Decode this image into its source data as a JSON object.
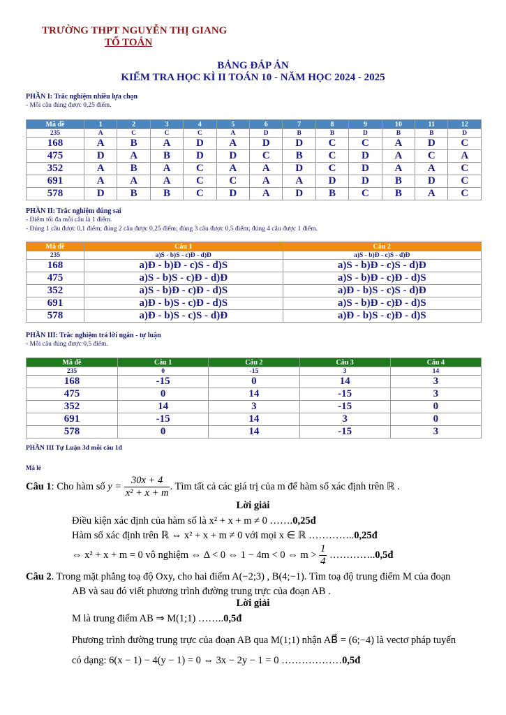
{
  "header": {
    "school": "TRƯỜNG THPT NGUYỄN THỊ GIANG",
    "department": "TỔ TOÁN",
    "title": "BẢNG ĐÁP ÁN",
    "subtitle": "KIỂM TRA HỌC KÌ II TOÁN 10 - NĂM HỌC 2024 - 2025"
  },
  "colors": {
    "header_red": "#8b1a1a",
    "title_blue": "#1a1a8c",
    "part1_header": "#4a86c0",
    "part2_header": "#f28c0a",
    "part3_header": "#1e7b1e"
  },
  "part1": {
    "title": "PHẦN I: Trắc nghiệm nhiều lựa chọn",
    "note": "- Mỗi câu đúng được 0,25 điểm.",
    "columns": [
      "Mã đề",
      "1",
      "2",
      "3",
      "4",
      "5",
      "6",
      "7",
      "8",
      "9",
      "10",
      "11",
      "12"
    ],
    "rows": [
      [
        "235",
        "A",
        "C",
        "C",
        "C",
        "A",
        "D",
        "B",
        "B",
        "D",
        "B",
        "B",
        "D"
      ],
      [
        "168",
        "A",
        "B",
        "A",
        "D",
        "A",
        "D",
        "D",
        "C",
        "C",
        "A",
        "D",
        "C"
      ],
      [
        "475",
        "D",
        "A",
        "B",
        "D",
        "D",
        "C",
        "B",
        "C",
        "D",
        "A",
        "C",
        "A"
      ],
      [
        "352",
        "A",
        "B",
        "A",
        "C",
        "A",
        "A",
        "D",
        "C",
        "D",
        "A",
        "A",
        "C"
      ],
      [
        "691",
        "A",
        "A",
        "A",
        "C",
        "C",
        "A",
        "A",
        "D",
        "D",
        "B",
        "D",
        "C"
      ],
      [
        "578",
        "D",
        "B",
        "B",
        "C",
        "D",
        "A",
        "D",
        "B",
        "C",
        "B",
        "A",
        "C"
      ]
    ]
  },
  "part2": {
    "title": "PHẦN II: Trắc nghiệm đúng sai",
    "notes": [
      "- Điểm tối đa mỗi câu là 1 điểm.",
      "- Đúng 1 câu được 0,1 điểm; đúng 2 câu được 0,25 điểm; đúng 3 câu được 0,5 điểm; đúng 4 câu được 1 điểm."
    ],
    "columns": [
      "Mã đề",
      "Câu 1",
      "Câu 2"
    ],
    "rows": [
      [
        "235",
        "a)S - b)S - c)Đ - d)Đ",
        "a)S - b)Đ - c)S - d)Đ"
      ],
      [
        "168",
        "a)Đ - b)Đ - c)S - d)S",
        "a)S - b)Đ - c)S - d)Đ"
      ],
      [
        "475",
        "a)S - b)S - c)Đ - d)Đ",
        "a)S - b)Đ - c)Đ - d)S"
      ],
      [
        "352",
        "a)S - b)Đ - c)Đ - d)S",
        "a)Đ - b)S - c)S - d)Đ"
      ],
      [
        "691",
        "a)Đ - b)S - c)Đ - d)S",
        "a)S - b)Đ - c)Đ - d)S"
      ],
      [
        "578",
        "a)Đ - b)S - c)S - d)Đ",
        "a)Đ - b)S - c)Đ - d)S"
      ]
    ]
  },
  "part3": {
    "title": "PHẦN III: Trắc nghiệm trả lời ngắn - tự luận",
    "note": "- Mỗi câu đúng được 0,5 điểm.",
    "columns": [
      "Mã đề",
      "Câu 1",
      "Câu 2",
      "Câu 3",
      "Câu 4"
    ],
    "rows": [
      [
        "235",
        "0",
        "-15",
        "3",
        "14"
      ],
      [
        "168",
        "-15",
        "0",
        "14",
        "3"
      ],
      [
        "475",
        "0",
        "14",
        "-15",
        "3"
      ],
      [
        "352",
        "14",
        "3",
        "-15",
        "0"
      ],
      [
        "691",
        "-15",
        "14",
        "3",
        "0"
      ],
      [
        "578",
        "0",
        "14",
        "-15",
        "3"
      ]
    ]
  },
  "essay": {
    "title": "PHẦN III Tự Luận 3đ mỗi câu 1đ",
    "code": "Mã lẻ",
    "q1": {
      "label": "Câu 1",
      "intro": ": Cho hàm số ",
      "y": "y =",
      "num": "30x + 4",
      "den": "x² + x + m",
      "rest": ". Tìm tất cả các giá trị của m để hàm số xác định trên ℝ .",
      "solution": "Lời giải",
      "s1": "Điều kiện xác định của hàm số là x² + x + m ≠ 0 …….",
      "p1": "0,25đ",
      "s2": "Hàm số xác định trên ℝ ⇔ x² + x + m ≠ 0   với mọi x ∈ ℝ …………..",
      "p2": "0,25đ",
      "s3": "⇔ x² + x + m = 0  vô nghiệm ⇔ Δ < 0 ⇔ 1 − 4m < 0 ⇔ m >",
      "s3num": "1",
      "s3den": "4",
      "s3dots": " …………..",
      "p3": "0,5đ"
    },
    "q2": {
      "label": "Câu 2",
      "intro": ". Trong mặt phẳng toạ độ Oxy, cho hai điểm A(−2;3) , B(4;−1). Tìm toạ độ trung điểm M của đoạn",
      "line2": "AB và sau đó viết phương trình đường trung trực của đoạn AB .",
      "solution": "Lời giải",
      "s1": "M  là trung điểm AB ⇒ M(1;1) ……..",
      "p1": "0,5đ",
      "s2": "Phương trình đường trung trực của đoạn AB qua M(1;1) nhận AB⃗ = (6;−4) là vectơ pháp tuyến",
      "s3": "có dạng: 6(x − 1) − 4(y − 1) = 0 ⇔ 3x − 2y − 1 = 0 ………………",
      "p3": "0,5đ"
    }
  }
}
